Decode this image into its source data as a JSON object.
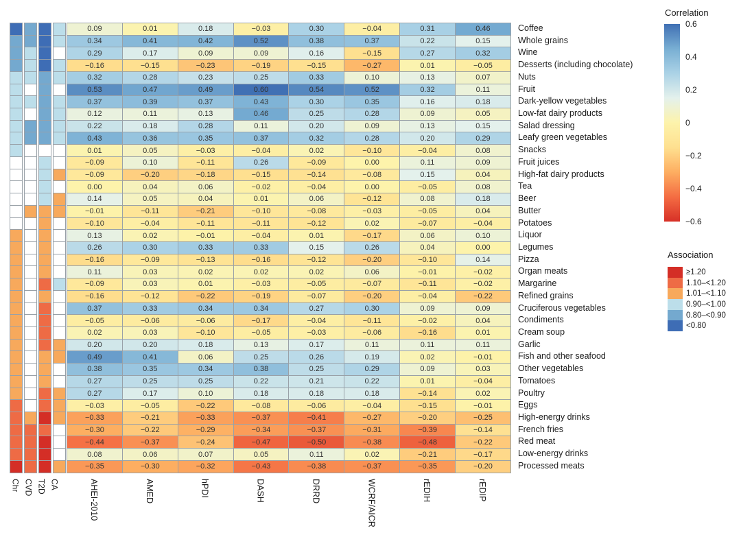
{
  "chart_data": {
    "type": "heatmap",
    "columns": [
      "AHEI-2010",
      "AMED",
      "hPDI",
      "DASH",
      "DRRD",
      "WCRF/AICR",
      "rEDIH",
      "rEDIP"
    ],
    "association_columns": [
      "Chr",
      "CVD",
      "T2D",
      "CA"
    ],
    "rows": [
      {
        "label": "Coffee",
        "values": [
          0.09,
          0.01,
          0.18,
          -0.03,
          0.3,
          -0.04,
          0.31,
          0.46
        ],
        "association": [
          "db",
          "mb",
          "db",
          "lb"
        ]
      },
      {
        "label": "Whole grains",
        "values": [
          0.34,
          0.41,
          0.42,
          0.52,
          0.38,
          0.37,
          0.22,
          0.15
        ],
        "association": [
          "mb",
          "mb",
          "db",
          "lb"
        ]
      },
      {
        "label": "Wine",
        "values": [
          0.29,
          0.17,
          0.09,
          0.09,
          0.16,
          -0.15,
          0.27,
          0.32
        ],
        "association": [
          "mb",
          "lb",
          "db",
          "w"
        ]
      },
      {
        "label": "Desserts (including chocolate)",
        "values": [
          -0.16,
          -0.15,
          -0.23,
          -0.19,
          -0.15,
          -0.27,
          0.01,
          -0.05
        ],
        "association": [
          "mb",
          "lb",
          "db",
          "lb"
        ]
      },
      {
        "label": "Nuts",
        "values": [
          0.32,
          0.28,
          0.23,
          0.25,
          0.33,
          0.1,
          0.13,
          0.07
        ],
        "association": [
          "lb",
          "lb",
          "mb",
          "lb"
        ]
      },
      {
        "label": "Fruit",
        "values": [
          0.53,
          0.47,
          0.49,
          0.6,
          0.54,
          0.52,
          0.32,
          0.11
        ],
        "association": [
          "lb",
          "w",
          "mb",
          "w"
        ]
      },
      {
        "label": "Dark-yellow vegetables",
        "values": [
          0.37,
          0.39,
          0.37,
          0.43,
          0.3,
          0.35,
          0.16,
          0.18
        ],
        "association": [
          "lb",
          "lb",
          "mb",
          "lb"
        ]
      },
      {
        "label": "Low-fat dairy products",
        "values": [
          0.12,
          0.11,
          0.13,
          0.46,
          0.25,
          0.28,
          0.09,
          0.05
        ],
        "association": [
          "lb",
          "w",
          "mb",
          "lb"
        ]
      },
      {
        "label": "Salad dressing",
        "values": [
          0.22,
          0.18,
          0.28,
          0.11,
          0.2,
          0.09,
          0.13,
          0.15
        ],
        "association": [
          "lb",
          "mb",
          "mb",
          "lb"
        ]
      },
      {
        "label": "Leafy green vegetables",
        "values": [
          0.43,
          0.36,
          0.35,
          0.37,
          0.32,
          0.28,
          0.2,
          0.29
        ],
        "association": [
          "lb",
          "mb",
          "mb",
          "lb"
        ]
      },
      {
        "label": "Snacks",
        "values": [
          0.01,
          0.05,
          -0.03,
          -0.04,
          0.02,
          -0.1,
          -0.04,
          0.08
        ],
        "association": [
          "lb",
          "w",
          "w",
          "w"
        ]
      },
      {
        "label": "Fruit juices",
        "values": [
          -0.09,
          0.1,
          -0.11,
          0.26,
          -0.09,
          0.0,
          0.11,
          0.09
        ],
        "association": [
          "w",
          "w",
          "lb",
          "w"
        ]
      },
      {
        "label": "High-fat dairy products",
        "values": [
          -0.09,
          -0.2,
          -0.18,
          -0.15,
          -0.14,
          -0.08,
          0.15,
          0.04
        ],
        "association": [
          "w",
          "w",
          "lb",
          "o"
        ]
      },
      {
        "label": "Tea",
        "values": [
          0.0,
          0.04,
          0.06,
          -0.02,
          -0.04,
          0.0,
          -0.05,
          0.08
        ],
        "association": [
          "w",
          "w",
          "lb",
          "w"
        ]
      },
      {
        "label": "Beer",
        "values": [
          0.14,
          0.05,
          0.04,
          0.01,
          0.06,
          -0.12,
          0.08,
          0.18
        ],
        "association": [
          "w",
          "w",
          "lb",
          "o"
        ]
      },
      {
        "label": "Butter",
        "values": [
          -0.01,
          -0.11,
          -0.21,
          -0.1,
          -0.08,
          -0.03,
          -0.05,
          0.04
        ],
        "association": [
          "w",
          "o",
          "o",
          "o"
        ]
      },
      {
        "label": "Potatoes",
        "values": [
          -0.1,
          -0.04,
          -0.11,
          -0.11,
          -0.12,
          0.02,
          -0.07,
          -0.04
        ],
        "association": [
          "w",
          "w",
          "o",
          "w"
        ]
      },
      {
        "label": "Liquor",
        "values": [
          0.13,
          0.02,
          -0.01,
          -0.04,
          0.01,
          -0.17,
          0.06,
          0.1
        ],
        "association": [
          "o",
          "w",
          "o",
          "w"
        ]
      },
      {
        "label": "Legumes",
        "values": [
          0.26,
          0.3,
          0.33,
          0.33,
          0.15,
          0.26,
          0.04,
          0.0
        ],
        "association": [
          "o",
          "w",
          "o",
          "w"
        ]
      },
      {
        "label": "Pizza",
        "values": [
          -0.16,
          -0.09,
          -0.13,
          -0.16,
          -0.12,
          -0.2,
          -0.1,
          0.14
        ],
        "association": [
          "o",
          "w",
          "o",
          "w"
        ]
      },
      {
        "label": "Organ meats",
        "values": [
          0.11,
          0.03,
          0.02,
          0.02,
          0.02,
          0.06,
          -0.01,
          -0.02
        ],
        "association": [
          "o",
          "w",
          "o",
          "w"
        ]
      },
      {
        "label": "Margarine",
        "values": [
          -0.09,
          0.03,
          0.01,
          -0.03,
          -0.05,
          -0.07,
          -0.11,
          -0.02
        ],
        "association": [
          "o",
          "w",
          "r",
          "lb"
        ]
      },
      {
        "label": "Refined grains",
        "values": [
          -0.16,
          -0.12,
          -0.22,
          -0.19,
          -0.07,
          -0.2,
          -0.04,
          -0.22
        ],
        "association": [
          "o",
          "w",
          "o",
          "w"
        ]
      },
      {
        "label": "Cruciferous vegetables",
        "values": [
          0.37,
          0.33,
          0.34,
          0.34,
          0.27,
          0.3,
          0.09,
          0.09
        ],
        "association": [
          "o",
          "w",
          "r",
          "w"
        ]
      },
      {
        "label": "Condiments",
        "values": [
          -0.05,
          -0.06,
          -0.06,
          -0.17,
          -0.04,
          -0.11,
          -0.02,
          0.04
        ],
        "association": [
          "o",
          "w",
          "r",
          "w"
        ]
      },
      {
        "label": "Cream soup",
        "values": [
          0.02,
          0.03,
          -0.1,
          -0.05,
          -0.03,
          -0.06,
          -0.16,
          0.01
        ],
        "association": [
          "o",
          "w",
          "r",
          "w"
        ]
      },
      {
        "label": "Garlic",
        "values": [
          0.2,
          0.2,
          0.18,
          0.13,
          0.17,
          0.11,
          0.11,
          0.11
        ],
        "association": [
          "o",
          "w",
          "r",
          "o"
        ]
      },
      {
        "label": "Fish and other seafood",
        "values": [
          0.49,
          0.41,
          0.06,
          0.25,
          0.26,
          0.19,
          0.02,
          -0.01
        ],
        "association": [
          "o",
          "w",
          "o",
          "o"
        ]
      },
      {
        "label": "Other vegetables",
        "values": [
          0.38,
          0.35,
          0.34,
          0.38,
          0.25,
          0.29,
          0.09,
          0.03
        ],
        "association": [
          "o",
          "w",
          "o",
          "w"
        ]
      },
      {
        "label": "Tomatoes",
        "values": [
          0.27,
          0.25,
          0.25,
          0.22,
          0.21,
          0.22,
          0.01,
          -0.04
        ],
        "association": [
          "o",
          "w",
          "o",
          "w"
        ]
      },
      {
        "label": "Poultry",
        "values": [
          0.27,
          0.17,
          0.1,
          0.18,
          0.18,
          0.18,
          -0.14,
          0.02
        ],
        "association": [
          "o",
          "w",
          "r",
          "o"
        ]
      },
      {
        "label": "Eggs",
        "values": [
          -0.03,
          -0.05,
          -0.22,
          -0.08,
          -0.06,
          -0.04,
          -0.15,
          -0.01
        ],
        "association": [
          "r",
          "w",
          "r",
          "o"
        ]
      },
      {
        "label": "High-energy drinks",
        "values": [
          -0.33,
          -0.21,
          -0.33,
          -0.37,
          -0.41,
          -0.27,
          -0.2,
          -0.25
        ],
        "association": [
          "r",
          "o",
          "dr",
          "o"
        ]
      },
      {
        "label": "French fries",
        "values": [
          -0.3,
          -0.22,
          -0.29,
          -0.34,
          -0.37,
          -0.31,
          -0.39,
          -0.14
        ],
        "association": [
          "r",
          "r",
          "r",
          "w"
        ]
      },
      {
        "label": "Red meat",
        "values": [
          -0.44,
          -0.37,
          -0.24,
          -0.47,
          -0.5,
          -0.38,
          -0.48,
          -0.22
        ],
        "association": [
          "r",
          "r",
          "dr",
          "w"
        ]
      },
      {
        "label": "Low-energy drinks",
        "values": [
          0.08,
          0.06,
          0.07,
          0.05,
          0.11,
          0.02,
          -0.21,
          -0.17
        ],
        "association": [
          "r",
          "r",
          "dr",
          "w"
        ]
      },
      {
        "label": "Processed meats",
        "values": [
          -0.35,
          -0.3,
          -0.32,
          -0.43,
          -0.38,
          -0.37,
          -0.35,
          -0.2
        ],
        "association": [
          "dr",
          "r",
          "dr",
          "o"
        ]
      }
    ],
    "correlation_legend": {
      "title": "Correlation",
      "min": -0.6,
      "max": 0.6,
      "tick_labels": [
        "0.6",
        "0.4",
        "0.2",
        "0",
        "−0.2",
        "−0.4",
        "−0.6"
      ]
    },
    "colormap_stops": [
      [
        -0.6,
        "#d73027"
      ],
      [
        -0.45,
        "#f46d43"
      ],
      [
        -0.3,
        "#fdae61"
      ],
      [
        -0.15,
        "#fee090"
      ],
      [
        0.0,
        "#fdf3ab"
      ],
      [
        0.15,
        "#e4f1ec"
      ],
      [
        0.3,
        "#abd2e6"
      ],
      [
        0.45,
        "#78aed3"
      ],
      [
        0.6,
        "#4070b4"
      ]
    ],
    "association_legend": {
      "title": "Association",
      "categories": [
        {
          "code": "dr",
          "label": "≥1.20"
        },
        {
          "code": "r",
          "label": "1.10–<1.20"
        },
        {
          "code": "o",
          "label": "1.01–<1.10"
        },
        {
          "code": "lb",
          "label": "0.90–<1.00"
        },
        {
          "code": "mb",
          "label": "0.80–<0.90"
        },
        {
          "code": "db",
          "label": "<0.80"
        }
      ]
    },
    "association_colors": {
      "dr": "#d42e26",
      "r": "#ee6b45",
      "o": "#f7a95c",
      "lb": "#bcdeea",
      "mb": "#74a9cf",
      "db": "#3e6db5",
      "w": "#ffffff"
    },
    "grid_color": "#99a1a8"
  }
}
